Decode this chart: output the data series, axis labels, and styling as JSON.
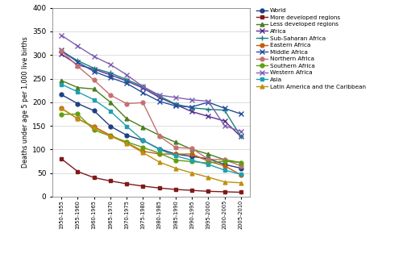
{
  "x_labels": [
    "1950-1955",
    "1955-1960",
    "1960-1965",
    "1965-1970",
    "1970-1975",
    "1975-1980",
    "1980-1985",
    "1985-1990",
    "1990-1995",
    "1995-2000",
    "2000-2005",
    "2005-2010"
  ],
  "series": {
    "World": {
      "color": "#1f3f7f",
      "marker": "o",
      "values": [
        216,
        197,
        182,
        149,
        130,
        119,
        101,
        90,
        85,
        80,
        68,
        60
      ]
    },
    "More developed regions": {
      "color": "#7f1a1a",
      "marker": "s",
      "values": [
        80,
        53,
        40,
        33,
        27,
        22,
        18,
        15,
        13,
        11,
        10,
        9
      ]
    },
    "Less developed regions": {
      "color": "#4a7f1f",
      "marker": "^",
      "values": [
        246,
        231,
        228,
        200,
        165,
        147,
        130,
        115,
        100,
        90,
        78,
        72
      ]
    },
    "Africa": {
      "color": "#5b2d8e",
      "marker": "x",
      "values": [
        302,
        279,
        270,
        258,
        245,
        230,
        210,
        195,
        180,
        170,
        160,
        127
      ]
    },
    "Sub-Saharan Africa": {
      "color": "#1a7f7f",
      "marker": "+",
      "values": [
        308,
        288,
        272,
        262,
        248,
        233,
        213,
        196,
        188,
        185,
        183,
        127
      ]
    },
    "Eastern Africa": {
      "color": "#bf6010",
      "marker": "o",
      "values": [
        187,
        165,
        148,
        130,
        114,
        96,
        90,
        90,
        90,
        75,
        65,
        46
      ]
    },
    "Middle Africa": {
      "color": "#1f4f9f",
      "marker": "x",
      "values": [
        310,
        285,
        265,
        252,
        240,
        220,
        202,
        192,
        190,
        200,
        187,
        175
      ]
    },
    "Northern Africa": {
      "color": "#c47070",
      "marker": "o",
      "values": [
        309,
        276,
        247,
        215,
        197,
        199,
        128,
        104,
        102,
        79,
        78,
        65
      ]
    },
    "Southern Africa": {
      "color": "#5f9f10",
      "marker": "o",
      "values": [
        174,
        175,
        141,
        128,
        116,
        104,
        92,
        77,
        74,
        71,
        75,
        72
      ]
    },
    "Western Africa": {
      "color": "#8060b0",
      "marker": "x",
      "values": [
        342,
        319,
        297,
        280,
        258,
        233,
        215,
        210,
        205,
        202,
        150,
        138
      ]
    },
    "Asia": {
      "color": "#1f9fb0",
      "marker": "s",
      "values": [
        238,
        222,
        205,
        181,
        149,
        119,
        100,
        86,
        77,
        68,
        56,
        47
      ]
    },
    "Latin America and the Caribbean": {
      "color": "#bf8f10",
      "marker": "^",
      "values": [
        187,
        165,
        146,
        128,
        113,
        93,
        73,
        60,
        50,
        41,
        31,
        29
      ]
    }
  },
  "ylabel": "Deaths under age 5 per 1,000 live births",
  "ylim": [
    0,
    400
  ],
  "yticks": [
    0,
    50,
    100,
    150,
    200,
    250,
    300,
    350,
    400
  ],
  "background_color": "#ffffff",
  "grid_color": "#d0d0d0"
}
